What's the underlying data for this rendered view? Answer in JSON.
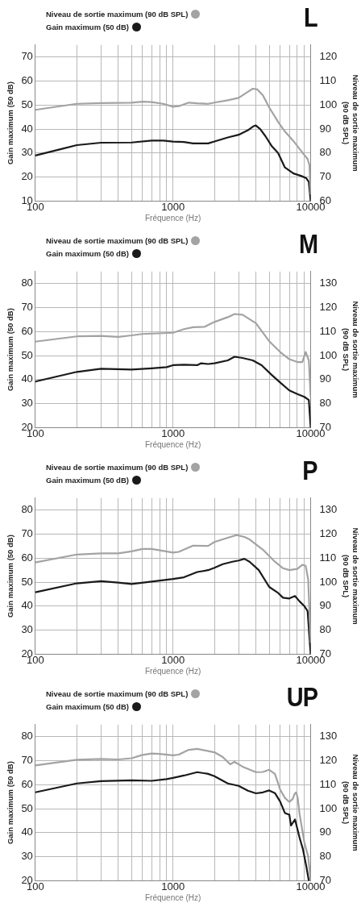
{
  "chart_data": [
    {
      "type": "line",
      "title": "L",
      "xlabel": "Fréquence (Hz)",
      "ylabel": "Gain maximum (50 dB)",
      "y2label": "Niveau de sortie maximum (90 dB SPL)",
      "log": "x",
      "grid": true,
      "legend": "top left",
      "marker": "none",
      "xlim": [
        100,
        10000
      ],
      "xticks": [
        100,
        {
          "value": 200,
          "label": null
        },
        {
          "value": 300,
          "label": null
        },
        {
          "value": 400,
          "label": null
        },
        {
          "value": 500,
          "label": null
        },
        {
          "value": 600,
          "label": null
        },
        {
          "value": 700,
          "label": null
        },
        {
          "value": 800,
          "label": null
        },
        {
          "value": 900,
          "label": null
        },
        1000,
        {
          "value": 2000,
          "label": null
        },
        {
          "value": 3000,
          "label": null
        },
        {
          "value": 4000,
          "label": null
        },
        {
          "value": 5000,
          "label": null
        },
        {
          "value": 6000,
          "label": null
        },
        {
          "value": 7000,
          "label": null
        },
        {
          "value": 8000,
          "label": null
        },
        {
          "value": 9000,
          "label": null
        },
        10000
      ],
      "ylim": [
        10,
        75
      ],
      "yticks": [
        10,
        20,
        30,
        40,
        50,
        60,
        70
      ],
      "y2lim": [
        60,
        125
      ],
      "y2ticks": [
        60,
        70,
        80,
        90,
        100,
        110,
        120
      ],
      "series": [
        {
          "name": "Niveau de sortie maximum (90 dB SPL)",
          "color": "#a3a3a3",
          "axis": "y2",
          "x": [
            100,
            200,
            300,
            500,
            600,
            700,
            850,
            1000,
            1100,
            1300,
            1500,
            1800,
            2000,
            2500,
            3000,
            3500,
            3800,
            4100,
            4500,
            5000,
            5800,
            6500,
            7500,
            8500,
            9500,
            9800,
            10000
          ],
          "values": [
            98,
            100.5,
            100.8,
            101,
            101.4,
            101.2,
            100.5,
            99.3,
            99.5,
            101,
            100.7,
            100.5,
            101,
            102,
            103,
            105.5,
            106.8,
            106.5,
            104,
            99,
            93,
            89,
            85,
            81,
            77.5,
            75,
            63
          ]
        },
        {
          "name": "Gain maximum (50 dB)",
          "color": "#1a1a1a",
          "x": [
            100,
            150,
            200,
            300,
            500,
            700,
            850,
            1000,
            1200,
            1400,
            1800,
            2000,
            2500,
            3000,
            3500,
            3800,
            4000,
            4300,
            4700,
            5200,
            5800,
            6500,
            7500,
            8500,
            9300,
            9700,
            10000
          ],
          "values": [
            29,
            31.5,
            33.3,
            34.3,
            34.4,
            35.2,
            35.2,
            34.8,
            34.6,
            34,
            34,
            34.8,
            36.5,
            37.6,
            39.5,
            41,
            41.5,
            40,
            37,
            33,
            30,
            24,
            21.5,
            20.5,
            19.5,
            18,
            10
          ]
        }
      ]
    },
    {
      "type": "line",
      "title": "M",
      "xlabel": "Fréquence (Hz)",
      "ylabel": "Gain maximum (50 dB)",
      "y2label": "Niveau de sortie maximum (90 dB SPL)",
      "log": "x",
      "grid": true,
      "legend": "top left",
      "marker": "none",
      "xlim": [
        100,
        10000
      ],
      "xticks": [
        100,
        {
          "value": 200,
          "label": null
        },
        {
          "value": 300,
          "label": null
        },
        {
          "value": 400,
          "label": null
        },
        {
          "value": 500,
          "label": null
        },
        {
          "value": 600,
          "label": null
        },
        {
          "value": 700,
          "label": null
        },
        {
          "value": 800,
          "label": null
        },
        {
          "value": 900,
          "label": null
        },
        1000,
        {
          "value": 2000,
          "label": null
        },
        {
          "value": 3000,
          "label": null
        },
        {
          "value": 4000,
          "label": null
        },
        {
          "value": 5000,
          "label": null
        },
        {
          "value": 6000,
          "label": null
        },
        {
          "value": 7000,
          "label": null
        },
        {
          "value": 8000,
          "label": null
        },
        {
          "value": 9000,
          "label": null
        },
        10000
      ],
      "ylim": [
        20,
        85
      ],
      "yticks": [
        20,
        30,
        40,
        50,
        60,
        70,
        80
      ],
      "y2lim": [
        70,
        135
      ],
      "y2ticks": [
        70,
        80,
        90,
        100,
        110,
        120,
        130
      ],
      "series": [
        {
          "name": "Niveau de sortie maximum (90 dB SPL)",
          "color": "#a3a3a3",
          "axis": "y2",
          "x": [
            100,
            200,
            300,
            400,
            500,
            600,
            1000,
            1200,
            1400,
            1700,
            2000,
            2500,
            2800,
            3200,
            4000,
            5000,
            6000,
            7000,
            8000,
            8700,
            9200,
            9700,
            10000
          ],
          "values": [
            105.8,
            108,
            108.2,
            107.8,
            108.4,
            109,
            109.5,
            111,
            111.8,
            112,
            114,
            116,
            117.3,
            117,
            113.5,
            106,
            101.5,
            98.5,
            97.3,
            97.3,
            101.5,
            98,
            83
          ]
        },
        {
          "name": "Gain maximum (50 dB)",
          "color": "#1a1a1a",
          "x": [
            100,
            200,
            300,
            500,
            700,
            900,
            1000,
            1200,
            1500,
            1600,
            1800,
            2000,
            2500,
            2800,
            3200,
            3800,
            4400,
            5200,
            6000,
            7000,
            8000,
            9000,
            9700,
            10000
          ],
          "values": [
            39.2,
            43.2,
            44.5,
            44.2,
            44.7,
            45.2,
            46,
            46.2,
            46,
            46.8,
            46.5,
            46.8,
            48,
            49.5,
            49,
            48,
            46,
            42,
            38.8,
            35.5,
            34,
            32.8,
            31.5,
            20
          ]
        }
      ]
    },
    {
      "type": "line",
      "title": "P",
      "xlabel": "Fréquence (Hz)",
      "ylabel": "Gain maximum (50 dB)",
      "y2label": "Niveau de sortie maximum (90 dB SPL)",
      "log": "x",
      "grid": true,
      "legend": "top left",
      "marker": "none",
      "xlim": [
        100,
        10000
      ],
      "xticks": [
        100,
        {
          "value": 200,
          "label": null
        },
        {
          "value": 300,
          "label": null
        },
        {
          "value": 400,
          "label": null
        },
        {
          "value": 500,
          "label": null
        },
        {
          "value": 600,
          "label": null
        },
        {
          "value": 700,
          "label": null
        },
        {
          "value": 800,
          "label": null
        },
        {
          "value": 900,
          "label": null
        },
        1000,
        {
          "value": 2000,
          "label": null
        },
        {
          "value": 3000,
          "label": null
        },
        {
          "value": 4000,
          "label": null
        },
        {
          "value": 5000,
          "label": null
        },
        {
          "value": 6000,
          "label": null
        },
        {
          "value": 7000,
          "label": null
        },
        {
          "value": 8000,
          "label": null
        },
        {
          "value": 9000,
          "label": null
        },
        10000
      ],
      "ylim": [
        20,
        85
      ],
      "yticks": [
        20,
        30,
        40,
        50,
        60,
        70,
        80
      ],
      "y2lim": [
        70,
        135
      ],
      "y2ticks": [
        70,
        80,
        90,
        100,
        110,
        120,
        130
      ],
      "series": [
        {
          "name": "Niveau de sortie maximum (90 dB SPL)",
          "color": "#a3a3a3",
          "axis": "y2",
          "x": [
            100,
            200,
            300,
            400,
            500,
            600,
            700,
            1000,
            1100,
            1400,
            1800,
            2000,
            2500,
            2900,
            3300,
            3600,
            4500,
            5500,
            6300,
            7000,
            8000,
            8700,
            9200,
            9600,
            10000
          ],
          "values": [
            108.2,
            111.5,
            112,
            112,
            112.8,
            113.8,
            113.8,
            112.3,
            112.6,
            115.2,
            115.1,
            116.7,
            118.5,
            119.6,
            118.8,
            117.8,
            113.5,
            108.5,
            105.8,
            105,
            105.5,
            107.2,
            106.8,
            101,
            75
          ]
        },
        {
          "name": "Gain maximum (50 dB)",
          "color": "#1a1a1a",
          "x": [
            100,
            200,
            300,
            400,
            500,
            700,
            1000,
            1200,
            1500,
            1800,
            2000,
            2300,
            2700,
            3000,
            3300,
            3600,
            4200,
            5000,
            5800,
            6300,
            7000,
            7700,
            8300,
            9000,
            9500,
            10000
          ],
          "values": [
            45.8,
            49.5,
            50.4,
            49.8,
            49.2,
            50.2,
            51.3,
            52,
            54.2,
            55,
            56,
            57.5,
            58.5,
            59,
            59.7,
            58.5,
            55,
            48,
            45.5,
            43.5,
            43.2,
            44.2,
            42,
            40,
            38,
            20
          ]
        }
      ]
    },
    {
      "type": "line",
      "title": "UP",
      "xlabel": "Fréquence (Hz)",
      "ylabel": "Gain maximum (50 dB)",
      "y2label": "Niveau de sortie maximum (90 dB SPL)",
      "log": "x",
      "grid": true,
      "legend": "top left",
      "marker": "none",
      "xlim": [
        100,
        10000
      ],
      "xticks": [
        100,
        {
          "value": 200,
          "label": null
        },
        {
          "value": 300,
          "label": null
        },
        {
          "value": 400,
          "label": null
        },
        {
          "value": 500,
          "label": null
        },
        {
          "value": 600,
          "label": null
        },
        {
          "value": 700,
          "label": null
        },
        {
          "value": 800,
          "label": null
        },
        {
          "value": 900,
          "label": null
        },
        1000,
        {
          "value": 2000,
          "label": null
        },
        {
          "value": 3000,
          "label": null
        },
        {
          "value": 4000,
          "label": null
        },
        {
          "value": 5000,
          "label": null
        },
        {
          "value": 6000,
          "label": null
        },
        {
          "value": 7000,
          "label": null
        },
        {
          "value": 8000,
          "label": null
        },
        {
          "value": 9000,
          "label": null
        },
        10000
      ],
      "ylim": [
        20,
        85
      ],
      "yticks": [
        20,
        30,
        40,
        50,
        60,
        70,
        80
      ],
      "y2lim": [
        70,
        135
      ],
      "y2ticks": [
        70,
        80,
        90,
        100,
        110,
        120,
        130
      ],
      "series": [
        {
          "name": "Niveau de sortie maximum (90 dB SPL)",
          "color": "#a3a3a3",
          "axis": "y2",
          "x": [
            100,
            200,
            300,
            400,
            500,
            600,
            700,
            800,
            1000,
            1100,
            1300,
            1500,
            1800,
            2000,
            2300,
            2600,
            2800,
            3200,
            4000,
            4500,
            5000,
            5500,
            6000,
            6500,
            7000,
            7400,
            7650,
            7850,
            8050,
            8300,
            9000,
            9600,
            10000
          ],
          "values": [
            118,
            120.4,
            120.7,
            120.5,
            121,
            122.4,
            123,
            122.8,
            122.2,
            122.5,
            124.5,
            124.9,
            124,
            123.5,
            121.5,
            118.5,
            119.5,
            117.5,
            115.2,
            115.3,
            116.2,
            114.5,
            108,
            104.5,
            102.8,
            104,
            106.2,
            106.8,
            104.5,
            98,
            86,
            80,
            70
          ]
        },
        {
          "name": "Gain maximum (50 dB)",
          "color": "#1a1a1a",
          "x": [
            100,
            200,
            300,
            500,
            700,
            900,
            1000,
            1200,
            1500,
            1800,
            2000,
            2500,
            3000,
            3500,
            4000,
            4500,
            5000,
            5500,
            6000,
            6500,
            7000,
            7200,
            7700,
            8300,
            8800,
            9300,
            9700
          ],
          "values": [
            56.8,
            60.5,
            61.5,
            61.8,
            61.6,
            62.3,
            62.8,
            63.8,
            65.2,
            64.5,
            63.5,
            60.5,
            59.5,
            57.5,
            56.4,
            56.8,
            57.6,
            56.5,
            53,
            48.2,
            47.5,
            43,
            45.5,
            38,
            33,
            26,
            20
          ]
        }
      ]
    }
  ]
}
